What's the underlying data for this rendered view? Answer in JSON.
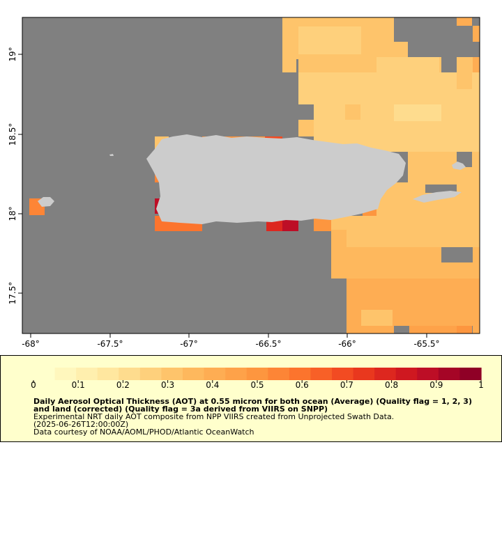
{
  "map": {
    "region": "Puerto Rico and Virgin Islands",
    "colors": {
      "no_data": "#808080",
      "land": "#cccccc",
      "frame": "#000000"
    },
    "lon_ticks": [
      "-68°",
      "-67.5°",
      "-67°",
      "-66.5°",
      "-66°",
      "-65.5°"
    ],
    "lat_ticks": [
      "19°",
      "18.5°",
      "18°",
      "17.5°"
    ]
  },
  "legend": {
    "colorbar_ticks": [
      "0",
      "0.1",
      "0.2",
      "0.3",
      "0.4",
      "0.5",
      "0.6",
      "0.7",
      "0.8",
      "0.9",
      "1"
    ],
    "colors": [
      "#ffffcc",
      "#fff7bd",
      "#ffefae",
      "#ffe79f",
      "#fedc8e",
      "#fed07c",
      "#fec46b",
      "#feb85d",
      "#fead53",
      "#fea249",
      "#fd963f",
      "#fd8536",
      "#fc742d",
      "#f86027",
      "#f24b22",
      "#e9381e",
      "#dd271f",
      "#cf1820",
      "#bd0e26",
      "#a50526",
      "#8f0026"
    ],
    "title": "Daily Aerosol Optical Thickness (AOT) at 0.55 micron for both ocean (Average) (Quality flag = 1, 2, 3) and land (corrected) (Quality flag = 3a derived from VIIRS on SNPP)",
    "line1": "Experimental NRT daily AOT composite from NPP VIIRS created from Unprojected Swath Data.",
    "line2": "(2025-06-26T12:00:00Z)",
    "line3": "Data courtesy of NOAA/AOML/PHOD/Atlantic OceanWatch"
  }
}
